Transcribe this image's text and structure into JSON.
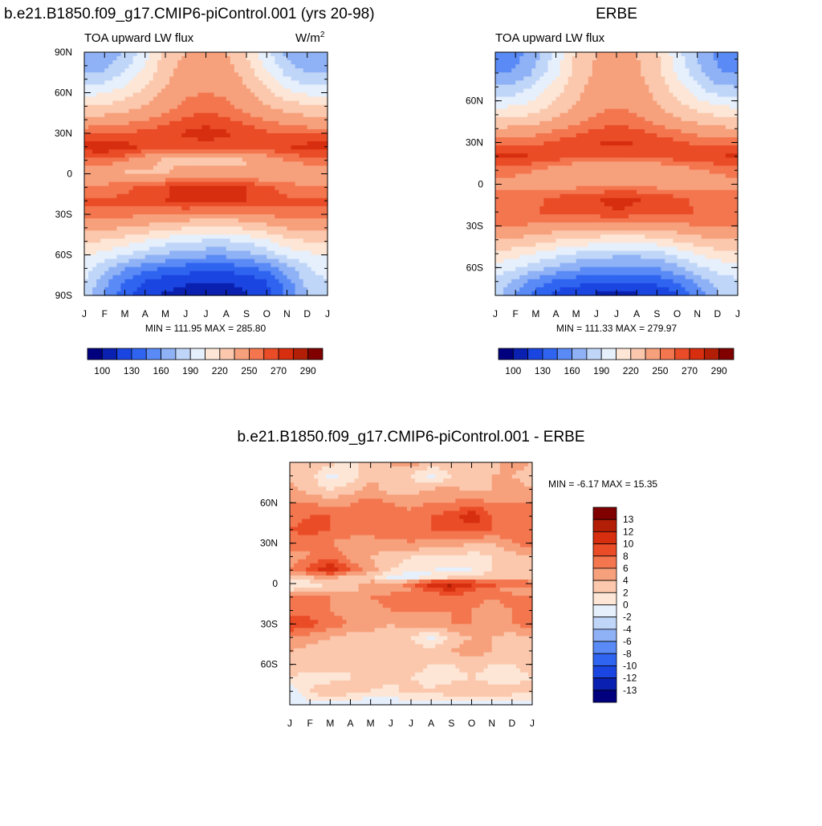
{
  "chart_data": [
    {
      "type": "heatmap",
      "title": "b.e21.B1850.f09_g17.CMIP6-piControl.001 (yrs 20-98)",
      "subtitle": "TOA upward LW flux",
      "units": "W/m2",
      "units_base": "W/m",
      "units_exp": "2",
      "x_tick_labels": [
        "J",
        "F",
        "M",
        "A",
        "M",
        "J",
        "J",
        "A",
        "S",
        "O",
        "N",
        "D",
        "J"
      ],
      "y_tick_labels": [
        "90N",
        "60N",
        "30N",
        "0",
        "30S",
        "60S",
        "90S"
      ],
      "y_ticks": [
        90,
        60,
        30,
        0,
        -30,
        -60,
        -90
      ],
      "ylim": [
        -90,
        90
      ],
      "stats": "MIN = 111.95 MAX = 285.80",
      "min": 111.95,
      "max": 285.8,
      "colorbar_labels": [
        "100",
        "130",
        "160",
        "190",
        "220",
        "250",
        "270",
        "290"
      ],
      "field": {
        "lat": [
          90,
          80,
          70,
          60,
          50,
          40,
          30,
          20,
          10,
          0,
          -10,
          -20,
          -30,
          -40,
          -50,
          -60,
          -70,
          -80,
          -90
        ],
        "months": [
          "Jan",
          "Feb",
          "Mar",
          "Apr",
          "May",
          "Jun",
          "Jul",
          "Aug",
          "Sep",
          "Oct",
          "Nov",
          "Dec",
          "Jan"
        ],
        "values": [
          [
            160,
            160,
            175,
            200,
            225,
            235,
            235,
            235,
            220,
            195,
            170,
            160,
            160
          ],
          [
            168,
            170,
            185,
            205,
            228,
            240,
            242,
            240,
            225,
            200,
            180,
            168,
            168
          ],
          [
            180,
            185,
            198,
            215,
            232,
            244,
            246,
            244,
            232,
            212,
            192,
            182,
            180
          ],
          [
            200,
            204,
            212,
            225,
            238,
            248,
            250,
            248,
            238,
            225,
            210,
            202,
            200
          ],
          [
            220,
            222,
            228,
            236,
            244,
            252,
            255,
            252,
            244,
            236,
            228,
            222,
            220
          ],
          [
            240,
            242,
            245,
            250,
            256,
            262,
            265,
            262,
            256,
            250,
            244,
            240,
            240
          ],
          [
            258,
            258,
            260,
            263,
            267,
            272,
            275,
            272,
            267,
            262,
            259,
            258,
            258
          ],
          [
            276,
            278,
            275,
            268,
            264,
            265,
            266,
            265,
            264,
            266,
            270,
            274,
            276
          ],
          [
            258,
            257,
            252,
            240,
            232,
            232,
            230,
            231,
            234,
            242,
            250,
            256,
            258
          ],
          [
            238,
            236,
            232,
            232,
            235,
            240,
            240,
            240,
            238,
            236,
            236,
            236,
            238
          ],
          [
            252,
            254,
            258,
            262,
            268,
            275,
            280,
            278,
            270,
            262,
            256,
            252,
            252
          ],
          [
            262,
            262,
            262,
            265,
            270,
            275,
            276,
            275,
            270,
            265,
            262,
            262,
            262
          ],
          [
            256,
            255,
            254,
            252,
            250,
            248,
            246,
            246,
            248,
            252,
            255,
            256,
            256
          ],
          [
            240,
            238,
            235,
            230,
            225,
            220,
            218,
            218,
            222,
            230,
            236,
            240,
            240
          ],
          [
            222,
            218,
            212,
            204,
            196,
            190,
            188,
            188,
            192,
            202,
            214,
            220,
            222
          ],
          [
            205,
            200,
            190,
            180,
            172,
            166,
            164,
            164,
            168,
            180,
            194,
            202,
            205
          ],
          [
            198,
            180,
            162,
            150,
            144,
            138,
            136,
            136,
            140,
            150,
            168,
            188,
            198
          ],
          [
            190,
            165,
            142,
            128,
            120,
            116,
            114,
            114,
            118,
            130,
            152,
            180,
            190
          ],
          [
            185,
            160,
            135,
            120,
            112,
            112,
            112,
            112,
            114,
            125,
            148,
            175,
            185
          ]
        ]
      }
    },
    {
      "type": "heatmap",
      "title": "ERBE",
      "subtitle": "TOA upward LW flux",
      "x_tick_labels": [
        "J",
        "F",
        "M",
        "A",
        "M",
        "J",
        "J",
        "A",
        "S",
        "O",
        "N",
        "D",
        "J"
      ],
      "y_tick_labels": [
        "60N",
        "30N",
        "0",
        "30S",
        "60S"
      ],
      "y_ticks": [
        60,
        30,
        0,
        -30,
        -60
      ],
      "ylim": [
        -80,
        95
      ],
      "stats": "MIN = 111.33 MAX = 279.97",
      "min": 111.33,
      "max": 279.97,
      "colorbar_labels": [
        "100",
        "130",
        "160",
        "190",
        "220",
        "250",
        "270",
        "290"
      ],
      "field": {
        "lat": [
          95,
          80,
          70,
          60,
          50,
          40,
          30,
          20,
          10,
          0,
          -10,
          -20,
          -30,
          -40,
          -50,
          -60,
          -70,
          -80
        ],
        "months": [
          "Jan",
          "Feb",
          "Mar",
          "Apr",
          "May",
          "Jun",
          "Jul",
          "Aug",
          "Sep",
          "Oct",
          "Nov",
          "Dec",
          "Jan"
        ],
        "values": [
          [
            145,
            152,
            170,
            195,
            222,
            235,
            236,
            235,
            222,
            196,
            172,
            155,
            145
          ],
          [
            158,
            162,
            178,
            200,
            225,
            238,
            240,
            238,
            225,
            202,
            180,
            162,
            158
          ],
          [
            175,
            180,
            194,
            212,
            230,
            242,
            244,
            242,
            230,
            212,
            192,
            178,
            175
          ],
          [
            195,
            198,
            206,
            220,
            234,
            246,
            248,
            246,
            234,
            222,
            208,
            198,
            195
          ],
          [
            215,
            216,
            222,
            232,
            242,
            250,
            253,
            250,
            242,
            232,
            224,
            218,
            215
          ],
          [
            236,
            238,
            242,
            248,
            254,
            260,
            262,
            260,
            254,
            248,
            242,
            238,
            236
          ],
          [
            256,
            256,
            258,
            262,
            266,
            270,
            272,
            270,
            266,
            262,
            258,
            256,
            256
          ],
          [
            272,
            272,
            270,
            266,
            264,
            264,
            265,
            264,
            264,
            266,
            268,
            270,
            272
          ],
          [
            255,
            254,
            250,
            242,
            236,
            235,
            234,
            234,
            236,
            242,
            248,
            252,
            255
          ],
          [
            246,
            244,
            242,
            242,
            244,
            246,
            247,
            246,
            244,
            243,
            243,
            244,
            246
          ],
          [
            254,
            255,
            258,
            262,
            266,
            270,
            272,
            271,
            266,
            262,
            258,
            255,
            254
          ],
          [
            260,
            260,
            260,
            262,
            266,
            268,
            270,
            268,
            266,
            262,
            260,
            260,
            260
          ],
          [
            252,
            250,
            248,
            246,
            244,
            242,
            241,
            241,
            242,
            246,
            250,
            252,
            252
          ],
          [
            236,
            232,
            228,
            222,
            218,
            214,
            212,
            212,
            216,
            224,
            230,
            234,
            236
          ],
          [
            216,
            212,
            204,
            196,
            188,
            182,
            180,
            180,
            184,
            194,
            206,
            214,
            216
          ],
          [
            198,
            192,
            182,
            172,
            164,
            158,
            156,
            156,
            160,
            172,
            186,
            196,
            198
          ],
          [
            188,
            172,
            154,
            142,
            136,
            132,
            130,
            130,
            134,
            146,
            164,
            180,
            188
          ],
          [
            182,
            160,
            138,
            124,
            116,
            112,
            112,
            112,
            116,
            128,
            150,
            174,
            182
          ]
        ]
      }
    },
    {
      "type": "heatmap",
      "title": "b.e21.B1850.f09_g17.CMIP6-piControl.001 - ERBE",
      "x_tick_labels": [
        "J",
        "F",
        "M",
        "A",
        "M",
        "J",
        "J",
        "A",
        "S",
        "O",
        "N",
        "D",
        "J"
      ],
      "y_tick_labels": [
        "60N",
        "30N",
        "0",
        "30S",
        "60S"
      ],
      "y_ticks": [
        60,
        30,
        0,
        -30,
        -60
      ],
      "ylim": [
        -90,
        90
      ],
      "stats": "MIN =  -6.17 MAX =  15.35",
      "min": -6.17,
      "max": 15.35,
      "colorbar_labels": [
        "13",
        "12",
        "10",
        "8",
        "6",
        "4",
        "2",
        "0",
        "-2",
        "-4",
        "-6",
        "-8",
        "-10",
        "-12",
        "-13"
      ],
      "field": {
        "lat": [
          90,
          80,
          70,
          60,
          50,
          40,
          30,
          20,
          10,
          5,
          0,
          -5,
          -10,
          -20,
          -30,
          -40,
          -50,
          -60,
          -70,
          -80,
          -90
        ],
        "months": [
          "Jan",
          "Feb",
          "Mar",
          "Apr",
          "May",
          "Jun",
          "Jul",
          "Aug",
          "Sep",
          "Oct",
          "Nov",
          "Dec",
          "Jan"
        ],
        "values": [
          [
            3,
            4,
            3,
            1,
            3,
            4,
            5,
            4,
            3,
            4,
            3,
            5,
            4
          ],
          [
            3,
            3,
            -1,
            1,
            3,
            4,
            2,
            -1,
            2,
            3,
            4,
            4,
            3
          ],
          [
            5,
            3,
            2,
            3,
            5,
            3,
            3,
            4,
            5,
            3,
            4,
            5,
            4
          ],
          [
            6,
            6,
            5,
            6,
            7,
            6,
            5,
            6,
            6,
            7,
            6,
            6,
            6
          ],
          [
            7,
            8,
            8,
            6,
            6,
            7,
            7,
            8,
            9,
            12,
            8,
            6,
            7
          ],
          [
            8,
            9,
            8,
            7,
            7,
            8,
            7,
            8,
            8,
            9,
            8,
            7,
            8
          ],
          [
            7,
            6,
            6,
            5,
            5,
            5,
            6,
            5,
            5,
            4,
            4,
            6,
            7
          ],
          [
            5,
            6,
            8,
            5,
            4,
            3,
            2,
            2,
            2,
            1,
            2,
            3,
            4
          ],
          [
            6,
            9,
            12,
            8,
            5,
            2,
            1,
            0,
            -1,
            0,
            2,
            3,
            4
          ],
          [
            3,
            4,
            5,
            3,
            2,
            -1,
            -2,
            0,
            1,
            2,
            3,
            3,
            3
          ],
          [
            0,
            1,
            2,
            3,
            5,
            5,
            7,
            12,
            13,
            11,
            9,
            8,
            7
          ],
          [
            2,
            3,
            3,
            4,
            4,
            5,
            6,
            9,
            10,
            8,
            6,
            5,
            4
          ],
          [
            6,
            7,
            6,
            5,
            6,
            7,
            7,
            6,
            7,
            7,
            6,
            7,
            6
          ],
          [
            7,
            7,
            6,
            5,
            5,
            6,
            6,
            6,
            6,
            6,
            5,
            6,
            7
          ],
          [
            10,
            9,
            7,
            6,
            5,
            4,
            5,
            5,
            6,
            6,
            5,
            6,
            7
          ],
          [
            6,
            5,
            4,
            3,
            3,
            3,
            2,
            -1,
            3,
            4,
            4,
            3,
            4
          ],
          [
            4,
            3,
            3,
            2,
            3,
            3,
            3,
            3,
            4,
            5,
            4,
            4,
            4
          ],
          [
            3,
            3,
            4,
            2,
            2,
            3,
            3,
            2,
            2,
            3,
            2,
            2,
            3
          ],
          [
            2,
            1,
            1,
            2,
            3,
            3,
            2,
            1,
            1,
            2,
            1,
            1,
            2
          ],
          [
            -2,
            2,
            4,
            3,
            2,
            1,
            3,
            2,
            4,
            4,
            3,
            3,
            3
          ],
          [
            -2,
            -1,
            -1,
            -2,
            -2,
            -2,
            -1,
            -1,
            -2,
            -2,
            -1,
            -1,
            -2
          ]
        ]
      }
    }
  ],
  "palette": {
    "flux": [
      "#00007f",
      "#0a20b0",
      "#1b45e0",
      "#2f64f0",
      "#5a8af5",
      "#8fb1f5",
      "#c0d6f8",
      "#e6effc",
      "#fde6d6",
      "#fbc8ad",
      "#f7a07c",
      "#f3764f",
      "#ea4c27",
      "#d62e0e",
      "#b21f06",
      "#800000"
    ],
    "diff": [
      "#00007f",
      "#0a20b0",
      "#1b45e0",
      "#2f64f0",
      "#5a8af5",
      "#8fb1f5",
      "#c0d6f8",
      "#e6effc",
      "#fde6d6",
      "#fbc8ad",
      "#f7a07c",
      "#f3764f",
      "#ea4c27",
      "#d62e0e",
      "#b21f06",
      "#800000"
    ],
    "flux_levels": [
      100,
      115,
      130,
      145,
      160,
      175,
      190,
      205,
      220,
      235,
      250,
      260,
      270,
      280,
      290
    ],
    "diff_levels": [
      -13,
      -12,
      -10,
      -8,
      -6,
      -4,
      -2,
      0,
      2,
      4,
      6,
      8,
      10,
      12,
      13
    ]
  }
}
